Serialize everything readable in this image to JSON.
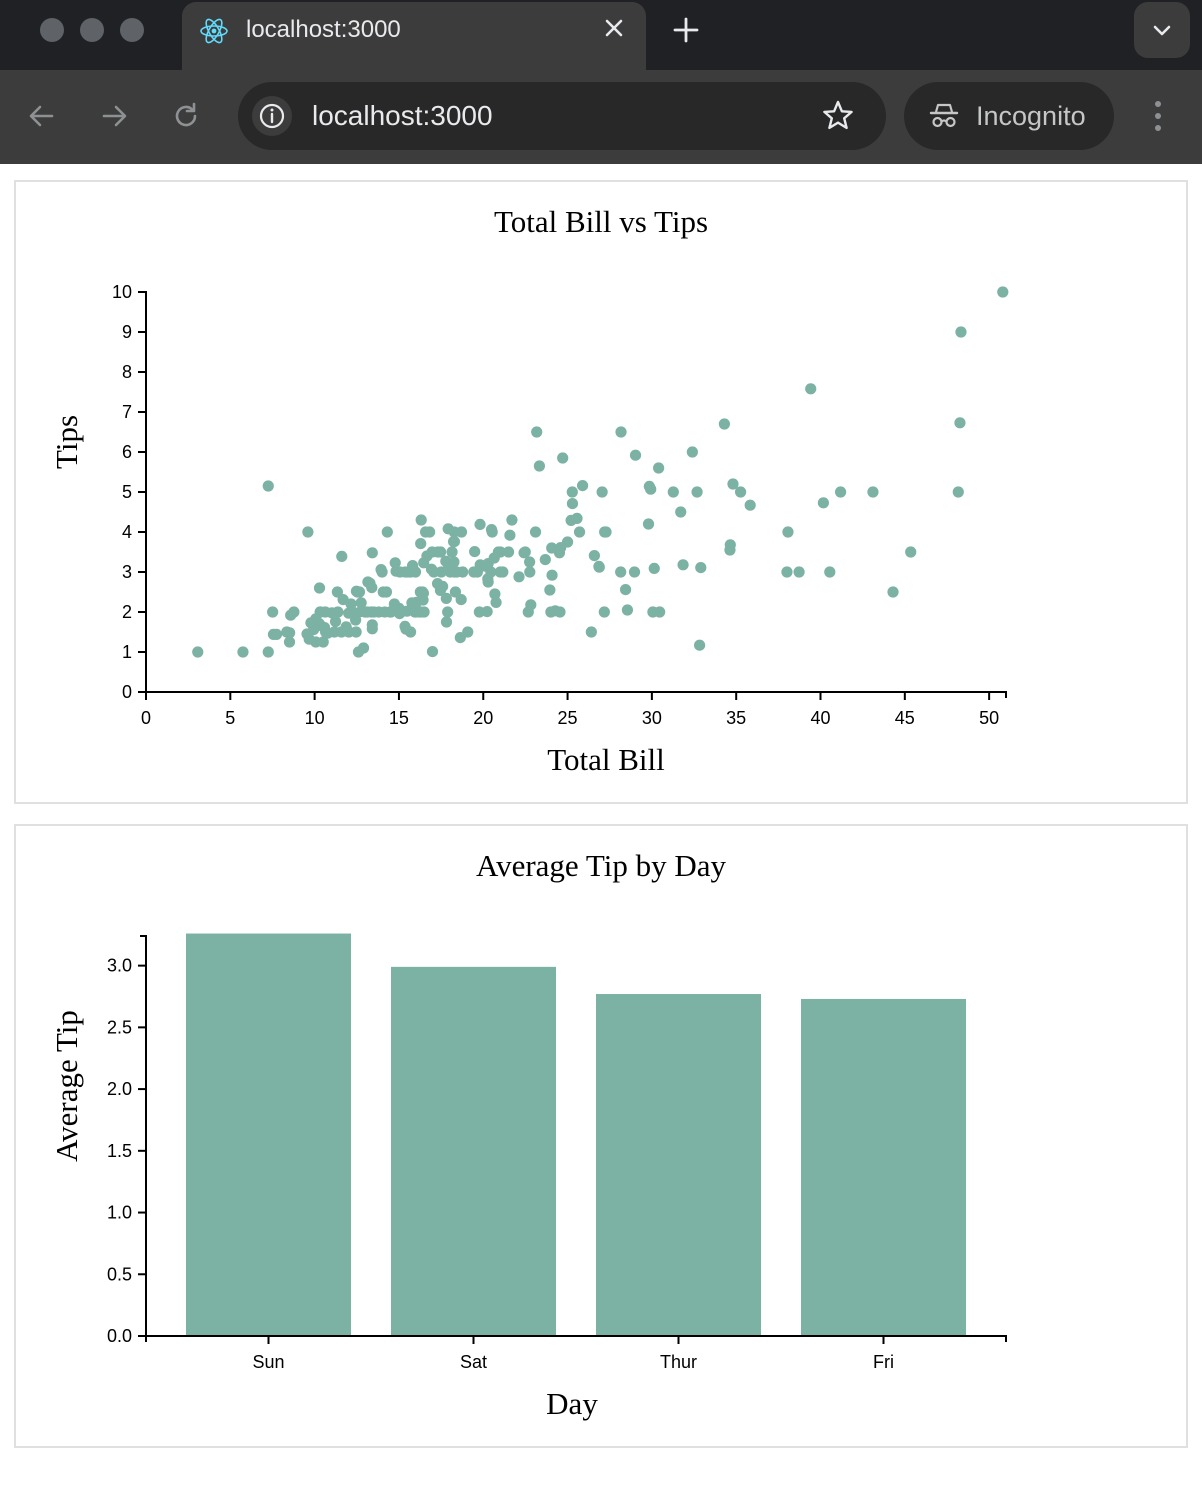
{
  "browser": {
    "tab_title": "localhost:3000",
    "url": "localhost:3000",
    "incognito_label": "Incognito",
    "icons": {
      "favicon": "react-logo-icon",
      "close": "close-icon",
      "new_tab": "plus-icon",
      "tab_menu": "chevron-down-icon",
      "back": "arrow-left-icon",
      "forward": "arrow-right-icon",
      "reload": "reload-icon",
      "site_info": "info-icon",
      "bookmark": "star-icon",
      "incognito": "incognito-icon",
      "menu": "kebab-menu-icon"
    }
  },
  "theme": {
    "mark_color": "#7cb2a3",
    "axis_color": "#000000"
  },
  "chart_data": [
    {
      "type": "scatter",
      "title": "Total Bill vs Tips",
      "xlabel": "Total Bill",
      "ylabel": "Tips",
      "xlim": [
        0,
        51
      ],
      "ylim": [
        0,
        10
      ],
      "xticks": [
        "0",
        "5",
        "10",
        "15",
        "20",
        "25",
        "30",
        "35",
        "40",
        "45",
        "50"
      ],
      "yticks": [
        "0",
        "1",
        "2",
        "3",
        "4",
        "5",
        "6",
        "7",
        "8",
        "9",
        "10"
      ],
      "points": [
        [
          3.07,
          1.0
        ],
        [
          5.75,
          1.0
        ],
        [
          7.25,
          1.0
        ],
        [
          7.25,
          5.15
        ],
        [
          7.51,
          2.0
        ],
        [
          7.56,
          1.44
        ],
        [
          7.74,
          1.44
        ],
        [
          8.35,
          1.5
        ],
        [
          8.51,
          1.25
        ],
        [
          8.52,
          1.48
        ],
        [
          8.58,
          1.92
        ],
        [
          8.77,
          2.0
        ],
        [
          9.55,
          1.45
        ],
        [
          9.6,
          4.0
        ],
        [
          9.68,
          1.32
        ],
        [
          9.78,
          1.73
        ],
        [
          9.94,
          1.56
        ],
        [
          10.07,
          1.25
        ],
        [
          10.07,
          1.83
        ],
        [
          10.27,
          1.71
        ],
        [
          10.29,
          2.6
        ],
        [
          10.33,
          1.67
        ],
        [
          10.33,
          2.0
        ],
        [
          10.34,
          1.66
        ],
        [
          10.34,
          2.0
        ],
        [
          10.51,
          1.25
        ],
        [
          10.59,
          1.61
        ],
        [
          10.63,
          2.0
        ],
        [
          10.65,
          1.5
        ],
        [
          10.77,
          1.47
        ],
        [
          11.02,
          1.98
        ],
        [
          11.17,
          1.5
        ],
        [
          11.24,
          1.76
        ],
        [
          11.35,
          2.5
        ],
        [
          11.38,
          2.0
        ],
        [
          11.59,
          1.5
        ],
        [
          11.61,
          3.39
        ],
        [
          11.69,
          2.31
        ],
        [
          11.87,
          1.63
        ],
        [
          12.02,
          1.97
        ],
        [
          12.03,
          1.5
        ],
        [
          12.16,
          2.2
        ],
        [
          12.26,
          2.0
        ],
        [
          12.43,
          1.8
        ],
        [
          12.46,
          1.5
        ],
        [
          12.48,
          2.52
        ],
        [
          12.54,
          2.5
        ],
        [
          12.6,
          1.0
        ],
        [
          12.66,
          2.5
        ],
        [
          12.74,
          2.01
        ],
        [
          12.76,
          2.23
        ],
        [
          12.9,
          1.1
        ],
        [
          13.0,
          2.0
        ],
        [
          13.03,
          2.0
        ],
        [
          13.13,
          2.0
        ],
        [
          13.16,
          2.75
        ],
        [
          13.28,
          2.72
        ],
        [
          13.37,
          2.0
        ],
        [
          13.39,
          2.61
        ],
        [
          13.42,
          3.48
        ],
        [
          13.42,
          1.58
        ],
        [
          13.42,
          1.68
        ],
        [
          13.51,
          2.0
        ],
        [
          13.81,
          2.0
        ],
        [
          13.94,
          3.06
        ],
        [
          14.0,
          3.0
        ],
        [
          14.07,
          2.5
        ],
        [
          14.15,
          2.0
        ],
        [
          14.26,
          2.5
        ],
        [
          14.31,
          4.0
        ],
        [
          14.48,
          2.0
        ],
        [
          14.52,
          2.0
        ],
        [
          14.73,
          2.2
        ],
        [
          14.78,
          3.23
        ],
        [
          14.83,
          3.02
        ],
        [
          15.01,
          2.09
        ],
        [
          15.04,
          1.96
        ],
        [
          15.06,
          3.0
        ],
        [
          15.36,
          1.64
        ],
        [
          15.38,
          3.0
        ],
        [
          15.42,
          1.57
        ],
        [
          15.48,
          2.02
        ],
        [
          15.53,
          3.0
        ],
        [
          15.69,
          3.0
        ],
        [
          15.69,
          1.5
        ],
        [
          15.77,
          2.23
        ],
        [
          15.81,
          3.16
        ],
        [
          15.95,
          2.0
        ],
        [
          15.98,
          2.03
        ],
        [
          15.98,
          3.0
        ],
        [
          16.0,
          2.0
        ],
        [
          16.04,
          2.24
        ],
        [
          16.21,
          2.0
        ],
        [
          16.27,
          2.5
        ],
        [
          16.29,
          3.71
        ],
        [
          16.31,
          2.0
        ],
        [
          16.32,
          4.3
        ],
        [
          16.4,
          2.5
        ],
        [
          16.43,
          2.3
        ],
        [
          16.45,
          2.47
        ],
        [
          16.47,
          3.23
        ],
        [
          16.49,
          2.0
        ],
        [
          16.58,
          4.0
        ],
        [
          16.66,
          3.4
        ],
        [
          16.82,
          4.0
        ],
        [
          16.93,
          3.07
        ],
        [
          16.97,
          3.5
        ],
        [
          16.99,
          1.01
        ],
        [
          17.07,
          3.0
        ],
        [
          17.29,
          2.71
        ],
        [
          17.31,
          3.5
        ],
        [
          17.46,
          2.54
        ],
        [
          17.47,
          3.5
        ],
        [
          17.51,
          3.0
        ],
        [
          17.59,
          2.64
        ],
        [
          17.78,
          3.27
        ],
        [
          17.81,
          2.34
        ],
        [
          17.82,
          1.75
        ],
        [
          17.89,
          2.0
        ],
        [
          17.92,
          4.08
        ],
        [
          17.92,
          3.08
        ],
        [
          18.04,
          3.0
        ],
        [
          18.15,
          3.5
        ],
        [
          18.24,
          3.76
        ],
        [
          18.26,
          3.25
        ],
        [
          18.28,
          4.0
        ],
        [
          18.29,
          3.76
        ],
        [
          18.29,
          3.0
        ],
        [
          18.35,
          2.5
        ],
        [
          18.43,
          3.0
        ],
        [
          18.64,
          1.36
        ],
        [
          18.69,
          2.31
        ],
        [
          18.71,
          4.0
        ],
        [
          18.78,
          3.0
        ],
        [
          19.08,
          1.5
        ],
        [
          19.44,
          3.0
        ],
        [
          19.49,
          3.51
        ],
        [
          19.65,
          3.0
        ],
        [
          19.77,
          2.0
        ],
        [
          19.81,
          4.19
        ],
        [
          19.82,
          3.18
        ],
        [
          20.08,
          3.15
        ],
        [
          20.23,
          2.01
        ],
        [
          20.27,
          2.83
        ],
        [
          20.29,
          2.75
        ],
        [
          20.29,
          3.21
        ],
        [
          20.45,
          3.0
        ],
        [
          20.49,
          4.06
        ],
        [
          20.53,
          4.0
        ],
        [
          20.65,
          3.35
        ],
        [
          20.69,
          2.45
        ],
        [
          20.76,
          2.24
        ],
        [
          20.9,
          3.5
        ],
        [
          21.01,
          3.0
        ],
        [
          21.01,
          3.5
        ],
        [
          21.16,
          3.0
        ],
        [
          21.5,
          3.5
        ],
        [
          21.58,
          3.92
        ],
        [
          21.7,
          4.3
        ],
        [
          22.12,
          2.88
        ],
        [
          22.42,
          3.48
        ],
        [
          22.49,
          3.5
        ],
        [
          22.67,
          2.0
        ],
        [
          22.75,
          3.25
        ],
        [
          22.76,
          3.0
        ],
        [
          22.82,
          2.18
        ],
        [
          23.1,
          4.0
        ],
        [
          23.17,
          6.5
        ],
        [
          23.33,
          5.65
        ],
        [
          23.68,
          3.31
        ],
        [
          23.95,
          2.55
        ],
        [
          24.01,
          2.0
        ],
        [
          24.06,
          3.6
        ],
        [
          24.08,
          2.92
        ],
        [
          24.27,
          2.03
        ],
        [
          24.52,
          3.48
        ],
        [
          24.55,
          2.0
        ],
        [
          24.59,
          3.61
        ],
        [
          24.71,
          5.85
        ],
        [
          25.0,
          3.75
        ],
        [
          25.21,
          4.29
        ],
        [
          25.28,
          5.0
        ],
        [
          25.29,
          4.71
        ],
        [
          25.56,
          4.34
        ],
        [
          25.71,
          4.0
        ],
        [
          25.89,
          5.16
        ],
        [
          26.41,
          1.5
        ],
        [
          26.59,
          3.41
        ],
        [
          26.86,
          3.14
        ],
        [
          26.88,
          3.12
        ],
        [
          27.05,
          5.0
        ],
        [
          27.18,
          2.0
        ],
        [
          27.2,
          4.0
        ],
        [
          27.28,
          4.0
        ],
        [
          28.15,
          3.0
        ],
        [
          28.17,
          6.5
        ],
        [
          28.44,
          2.56
        ],
        [
          28.55,
          2.05
        ],
        [
          28.97,
          3.0
        ],
        [
          29.03,
          5.92
        ],
        [
          29.8,
          4.2
        ],
        [
          29.85,
          5.14
        ],
        [
          29.93,
          5.07
        ],
        [
          30.06,
          2.0
        ],
        [
          30.14,
          3.09
        ],
        [
          30.4,
          5.6
        ],
        [
          30.46,
          2.0
        ],
        [
          31.27,
          5.0
        ],
        [
          31.71,
          4.5
        ],
        [
          31.85,
          3.18
        ],
        [
          32.4,
          6.0
        ],
        [
          32.68,
          5.0
        ],
        [
          32.83,
          1.17
        ],
        [
          32.9,
          3.11
        ],
        [
          34.3,
          6.7
        ],
        [
          34.63,
          3.55
        ],
        [
          34.65,
          3.68
        ],
        [
          34.81,
          5.2
        ],
        [
          35.26,
          5.0
        ],
        [
          35.83,
          4.67
        ],
        [
          38.01,
          3.0
        ],
        [
          38.07,
          4.0
        ],
        [
          38.73,
          3.0
        ],
        [
          39.42,
          7.58
        ],
        [
          40.17,
          4.73
        ],
        [
          40.55,
          3.0
        ],
        [
          41.19,
          5.0
        ],
        [
          43.11,
          5.0
        ],
        [
          44.3,
          2.5
        ],
        [
          45.35,
          3.5
        ],
        [
          48.17,
          5.0
        ],
        [
          48.27,
          6.73
        ],
        [
          48.33,
          9.0
        ],
        [
          50.81,
          10.0
        ]
      ]
    },
    {
      "type": "bar",
      "title": "Average Tip by Day",
      "xlabel": "Day",
      "ylabel": "Average Tip",
      "categories": [
        "Sun",
        "Sat",
        "Thur",
        "Fri"
      ],
      "values": [
        3.26,
        2.99,
        2.77,
        2.73
      ],
      "ylim": [
        0,
        3.24
      ],
      "yticks": [
        "0.0",
        "0.5",
        "1.0",
        "1.5",
        "2.0",
        "2.5",
        "3.0"
      ]
    }
  ]
}
